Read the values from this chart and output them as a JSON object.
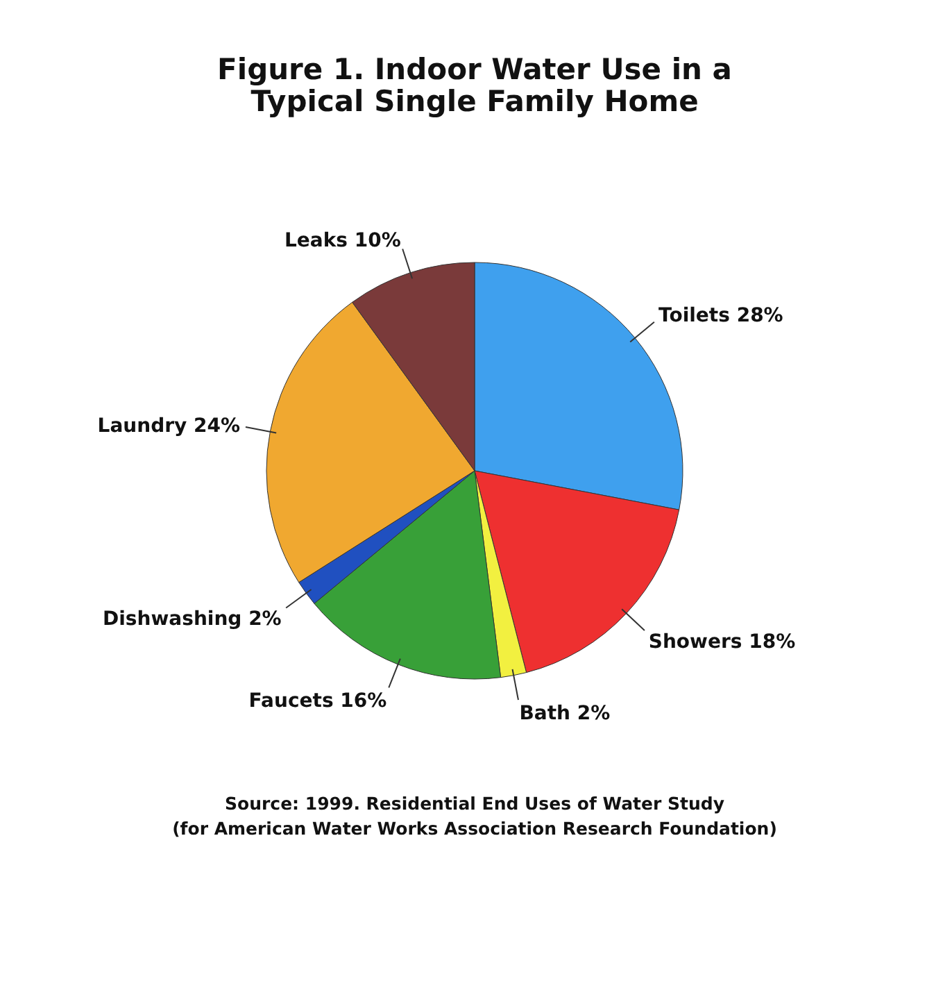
{
  "chart_data": {
    "type": "pie",
    "title": "Figure 1.  Indoor Water Use in a\nTypical Single Family Home",
    "categories": [
      "Toilets",
      "Showers",
      "Bath",
      "Faucets",
      "Dishwashing",
      "Laundry",
      "Leaks"
    ],
    "values": [
      28,
      18,
      2,
      16,
      2,
      24,
      10
    ],
    "value_labels": [
      "28%",
      "18%",
      "2%",
      "16%",
      "2%",
      "24%",
      "10%"
    ],
    "colors": [
      "#3fa0ee",
      "#ee3030",
      "#f2f040",
      "#38a038",
      "#2050c0",
      "#f0a830",
      "#7a3a3a"
    ],
    "annotations": [
      "Source: 1999. Residential End Uses of Water Study",
      "(for American Water Works Association Research Foundation)"
    ]
  }
}
